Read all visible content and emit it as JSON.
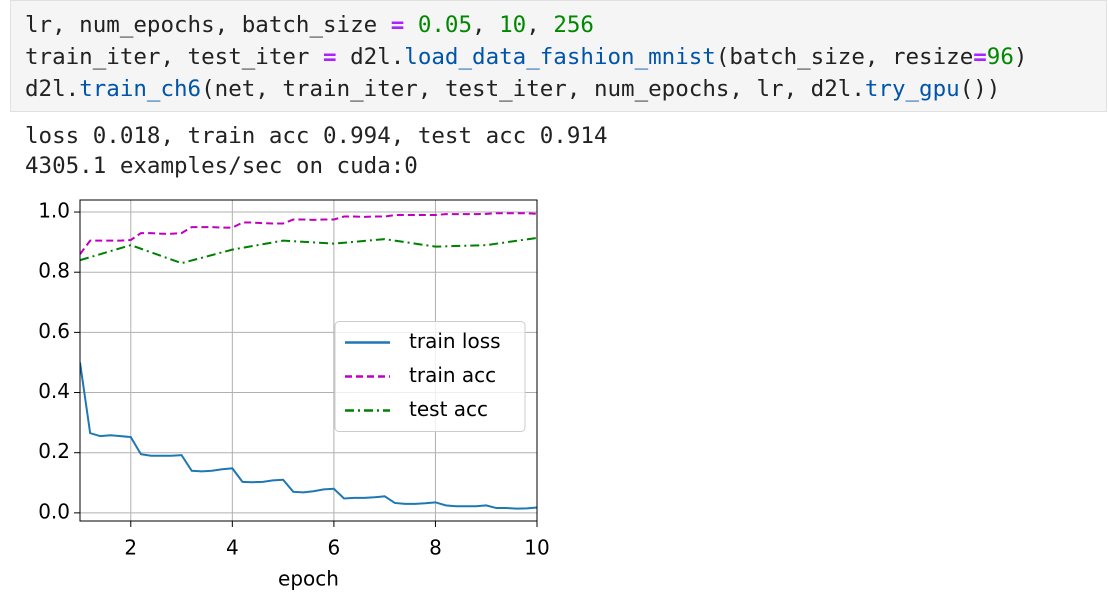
{
  "code": {
    "lines": [
      [
        {
          "text": "lr, num_epochs, batch_size ",
          "kind": "plain"
        },
        {
          "text": "=",
          "kind": "op"
        },
        {
          "text": " ",
          "kind": "plain"
        },
        {
          "text": "0.05",
          "kind": "num"
        },
        {
          "text": ", ",
          "kind": "plain"
        },
        {
          "text": "10",
          "kind": "num"
        },
        {
          "text": ", ",
          "kind": "plain"
        },
        {
          "text": "256",
          "kind": "num"
        }
      ],
      [
        {
          "text": "train_iter, test_iter ",
          "kind": "plain"
        },
        {
          "text": "=",
          "kind": "op"
        },
        {
          "text": " d2l.",
          "kind": "plain"
        },
        {
          "text": "load_data_fashion_mnist",
          "kind": "func"
        },
        {
          "text": "(batch_size, resize",
          "kind": "plain"
        },
        {
          "text": "=",
          "kind": "op"
        },
        {
          "text": "96",
          "kind": "num"
        },
        {
          "text": ")",
          "kind": "plain"
        }
      ],
      [
        {
          "text": "d2l.",
          "kind": "plain"
        },
        {
          "text": "train_ch6",
          "kind": "func"
        },
        {
          "text": "(net, train_iter, test_iter, num_epochs, lr, d2l.",
          "kind": "plain"
        },
        {
          "text": "try_gpu",
          "kind": "func"
        },
        {
          "text": "())",
          "kind": "plain"
        }
      ]
    ]
  },
  "output": [
    "loss 0.018, train acc 0.994, test acc 0.914",
    "4305.1 examples/sec on cuda:0"
  ],
  "chart_data": {
    "type": "line",
    "xlabel": "epoch",
    "xlim": [
      1,
      10
    ],
    "xticks": [
      2,
      4,
      6,
      8,
      10
    ],
    "ylim": [
      -0.027,
      1.04
    ],
    "yticks": [
      {
        "value": 0,
        "label": "0.0"
      },
      {
        "value": 0.2,
        "label": "0.2"
      },
      {
        "value": 0.4,
        "label": "0.4"
      },
      {
        "value": 0.6,
        "label": "0.6"
      },
      {
        "value": 0.8,
        "label": "0.8"
      },
      {
        "value": 1,
        "label": "1.0"
      }
    ],
    "grid": true,
    "legend": "center right",
    "series": [
      {
        "name": "train loss",
        "color": "#1f77b4",
        "dash": "solid",
        "x": [
          1.0,
          1.2,
          1.4,
          1.6,
          1.8,
          2.0,
          2.2,
          2.4,
          2.6,
          2.8,
          3.0,
          3.2,
          3.4,
          3.6,
          3.8,
          4.0,
          4.2,
          4.4,
          4.6,
          4.8,
          5.0,
          5.2,
          5.4,
          5.6,
          5.8,
          6.0,
          6.2,
          6.4,
          6.6,
          6.8,
          7.0,
          7.2,
          7.4,
          7.6,
          7.8,
          8.0,
          8.2,
          8.4,
          8.6,
          8.8,
          9.0,
          9.2,
          9.4,
          9.6,
          9.8,
          10.0
        ],
        "values": [
          0.5,
          0.265,
          0.255,
          0.258,
          0.255,
          0.252,
          0.195,
          0.19,
          0.19,
          0.19,
          0.192,
          0.14,
          0.138,
          0.14,
          0.145,
          0.148,
          0.103,
          0.102,
          0.103,
          0.108,
          0.11,
          0.07,
          0.068,
          0.072,
          0.078,
          0.08,
          0.048,
          0.05,
          0.05,
          0.052,
          0.055,
          0.033,
          0.03,
          0.03,
          0.032,
          0.035,
          0.025,
          0.022,
          0.022,
          0.022,
          0.025,
          0.016,
          0.016,
          0.014,
          0.015,
          0.018
        ]
      },
      {
        "name": "train acc",
        "color": "#bf00bf",
        "dash": "dashed",
        "x": [
          1.0,
          1.2,
          1.4,
          1.6,
          1.8,
          2.0,
          2.2,
          2.4,
          2.6,
          2.8,
          3.0,
          3.2,
          3.4,
          3.6,
          3.8,
          4.0,
          4.2,
          4.4,
          4.6,
          4.8,
          5.0,
          5.2,
          5.4,
          5.6,
          5.8,
          6.0,
          6.2,
          6.4,
          6.6,
          6.8,
          7.0,
          7.2,
          7.4,
          7.6,
          7.8,
          8.0,
          8.2,
          8.4,
          8.6,
          8.8,
          9.0,
          9.2,
          9.4,
          9.6,
          9.8,
          10.0
        ],
        "values": [
          0.86,
          0.905,
          0.905,
          0.905,
          0.905,
          0.907,
          0.93,
          0.93,
          0.928,
          0.928,
          0.93,
          0.95,
          0.95,
          0.95,
          0.948,
          0.948,
          0.965,
          0.965,
          0.963,
          0.962,
          0.962,
          0.975,
          0.975,
          0.974,
          0.975,
          0.975,
          0.985,
          0.985,
          0.984,
          0.985,
          0.985,
          0.99,
          0.99,
          0.99,
          0.99,
          0.99,
          0.993,
          0.993,
          0.993,
          0.993,
          0.994,
          0.996,
          0.996,
          0.996,
          0.996,
          0.994
        ]
      },
      {
        "name": "test acc",
        "color": "#008000",
        "dash": "dashdot",
        "x": [
          1,
          2,
          3,
          4,
          5,
          6,
          7,
          8,
          9,
          10
        ],
        "values": [
          0.84,
          0.89,
          0.83,
          0.875,
          0.905,
          0.895,
          0.91,
          0.885,
          0.89,
          0.914
        ]
      }
    ]
  }
}
